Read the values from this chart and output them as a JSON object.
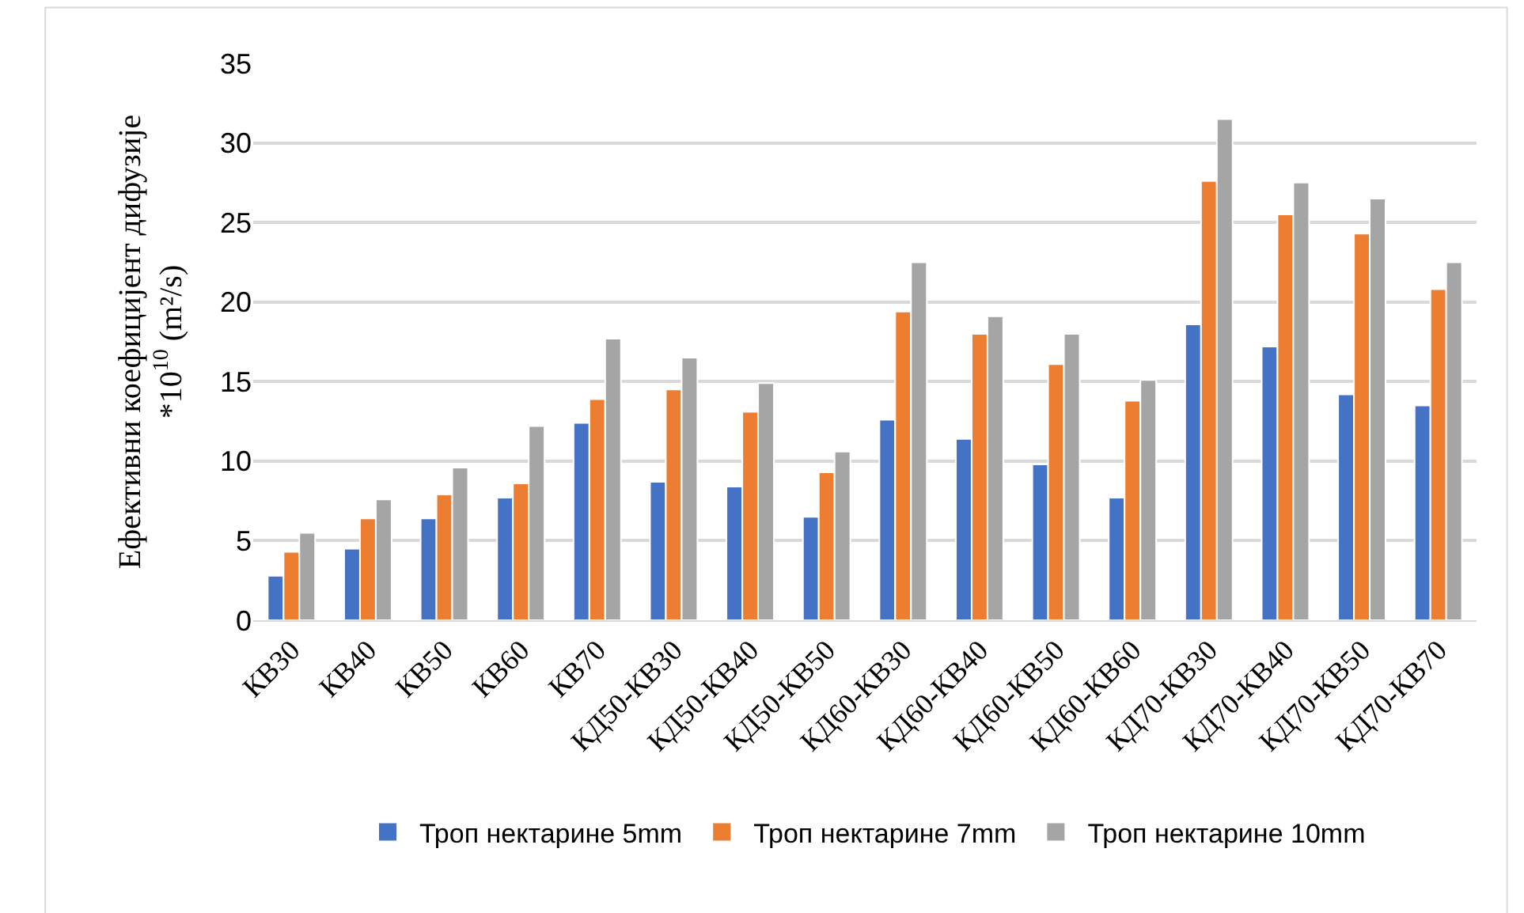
{
  "chart_data": {
    "type": "bar",
    "ylabel": "Ефективни коефицијент дифузије\n*10$^{10}$ (m²/s)",
    "categories": [
      "КВ30",
      "КВ40",
      "КВ50",
      "КВ60",
      "КВ70",
      "КД50-КВ30",
      "КД50-КВ40",
      "КД50-КВ50",
      "КД60-КВ30",
      "КД60-КВ40",
      "КД60-КВ50",
      "КД60-КВ60",
      "КД70-КВ30",
      "КД70-КВ40",
      "КД70-КВ50",
      "КД70-КВ70"
    ],
    "series": [
      {
        "name": "Троп нектарине 5mm",
        "color": "#4472c4",
        "values": [
          2.8,
          4.5,
          6.4,
          7.7,
          12.4,
          8.7,
          8.4,
          6.5,
          12.6,
          11.4,
          9.8,
          7.7,
          18.6,
          17.2,
          14.2,
          13.5
        ]
      },
      {
        "name": "Троп нектарине 7mm",
        "color": "#ed7d31",
        "values": [
          4.3,
          6.4,
          7.9,
          8.6,
          13.9,
          14.5,
          13.1,
          9.3,
          19.4,
          18.0,
          16.1,
          13.8,
          27.6,
          25.5,
          24.3,
          20.8
        ]
      },
      {
        "name": "Троп нектарине 10mm",
        "color": "#a5a5a5",
        "values": [
          5.5,
          7.6,
          9.6,
          12.2,
          17.7,
          16.5,
          14.9,
          10.6,
          22.5,
          19.1,
          18.0,
          15.1,
          31.5,
          27.5,
          26.5,
          22.5
        ]
      }
    ],
    "ylim": [
      0,
      35
    ],
    "yticks": [
      0,
      5,
      10,
      15,
      20,
      25,
      30,
      35
    ],
    "grid": "y",
    "legend": "bottom"
  }
}
